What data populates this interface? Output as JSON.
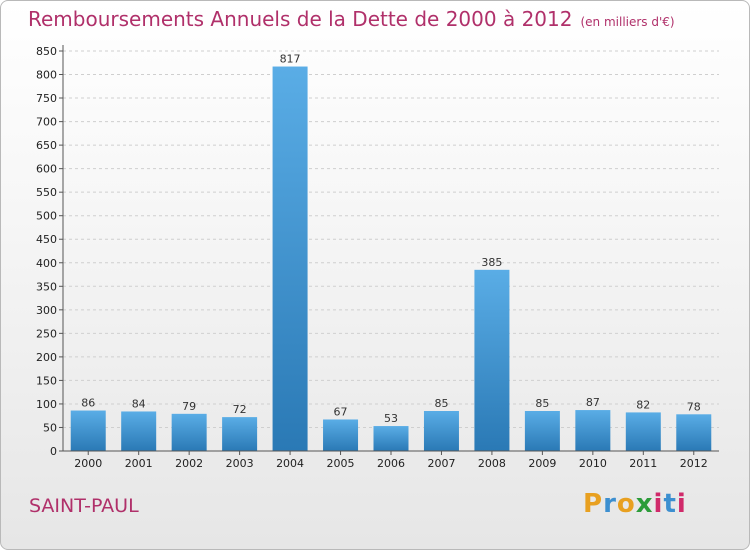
{
  "chart_data": {
    "type": "bar",
    "title": "Remboursements Annuels de la Dette de 2000 à 2012",
    "subtitle": "(en milliers d'€)",
    "categories": [
      "2000",
      "2001",
      "2002",
      "2003",
      "2004",
      "2005",
      "2006",
      "2007",
      "2008",
      "2009",
      "2010",
      "2011",
      "2012"
    ],
    "values": [
      86,
      84,
      79,
      72,
      817,
      67,
      53,
      85,
      385,
      85,
      87,
      82,
      78
    ],
    "ylim": [
      0,
      850
    ],
    "yticks": [
      0,
      50,
      100,
      150,
      200,
      250,
      300,
      350,
      400,
      450,
      500,
      550,
      600,
      650,
      700,
      750,
      800,
      850
    ],
    "grid": true,
    "colors": {
      "bar_light": "#5aade6",
      "bar_dark": "#2a79b5"
    }
  },
  "footer": {
    "commune": "SAINT-PAUL",
    "logo_letters": [
      "P",
      "r",
      "o",
      "x",
      "i",
      "t",
      "i"
    ],
    "logo_colors": [
      "#e8a020",
      "#3c8fd0",
      "#e8a020",
      "#2c9c3a",
      "#d02a6a",
      "#3c8fd0",
      "#d02a6a"
    ]
  }
}
